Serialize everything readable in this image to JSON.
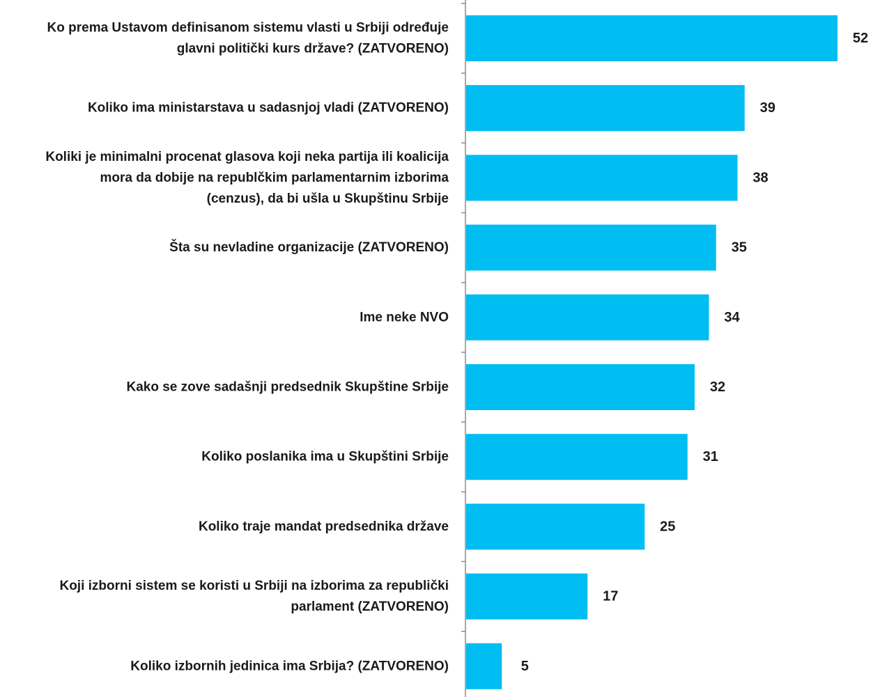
{
  "chart_data": {
    "type": "bar",
    "orientation": "horizontal",
    "categories": [
      [
        "Ko prema Ustavom definisanom sistemu vlasti u Srbiji određuje",
        "glavni politički kurs države? (ZATVORENO)"
      ],
      [
        "Koliko ima ministarstava u sadasnjoj vladi (ZATVORENO)"
      ],
      [
        "Koliki je minimalni procenat glasova koji neka partija ili koalicija",
        "mora da dobije na republčkim parlamentarnim izborima",
        "(cenzus), da bi ušla u Skupštinu Srbije"
      ],
      [
        "Šta su nevladine organizacije (ZATVORENO)"
      ],
      [
        "Ime neke NVO"
      ],
      [
        "Kako se zove sadašnji predsednik Skupštine Srbije"
      ],
      [
        "Koliko poslanika ima u Skupštini Srbije"
      ],
      [
        "Koliko traje mandat predsednika države"
      ],
      [
        "Koji izborni sistem se koristi u Srbiji na izborima za republički",
        "parlament  (ZATVORENO)"
      ],
      [
        "Koliko izbornih jedinica ima Srbija? (ZATVORENO)"
      ]
    ],
    "values": [
      52,
      39,
      38,
      35,
      34,
      32,
      31,
      25,
      17,
      5
    ],
    "bar_color": "#00bdf2",
    "axis_color": "#8c8c8c",
    "xlim": [
      0,
      55
    ],
    "data_labels": true,
    "grid": false
  }
}
